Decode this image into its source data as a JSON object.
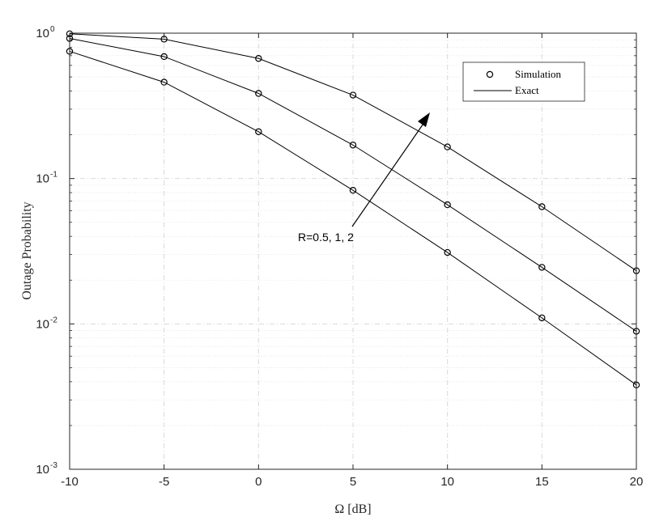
{
  "chart_data": {
    "type": "line",
    "xlabel": "Ω [dB]",
    "ylabel": "Outage Probability",
    "xlim": [
      -10,
      20
    ],
    "ylim": [
      0.001,
      1
    ],
    "yscale": "log",
    "grid": true,
    "x": [
      -10,
      -5,
      0,
      5,
      10,
      15,
      20
    ],
    "x_tick_labels": [
      "-10",
      "-5",
      "0",
      "5",
      "10",
      "15",
      "20"
    ],
    "y_ticks": [
      {
        "value": 1,
        "base": "10",
        "exp": "0"
      },
      {
        "value": 0.1,
        "base": "10",
        "exp": "-1"
      },
      {
        "value": 0.01,
        "base": "10",
        "exp": "-2"
      },
      {
        "value": 0.001,
        "base": "10",
        "exp": "-3"
      }
    ],
    "series": [
      {
        "values": [
          0.75,
          0.46,
          0.21,
          0.083,
          0.031,
          0.011,
          0.0038
        ]
      },
      {
        "values": [
          0.92,
          0.69,
          0.385,
          0.17,
          0.066,
          0.0245,
          0.0089
        ]
      },
      {
        "values": [
          0.99,
          0.91,
          0.67,
          0.375,
          0.165,
          0.064,
          0.0232
        ]
      }
    ],
    "legend": {
      "position": "top-right",
      "entries": [
        {
          "label": "Simulation",
          "marker": "circle"
        },
        {
          "label": "Exact",
          "marker": "line"
        }
      ]
    },
    "annotation": {
      "text": "R=0.5, 1, 2"
    },
    "colors": {
      "line": "#000000",
      "grid": "#d9d9d9",
      "axis": "#262626"
    }
  }
}
